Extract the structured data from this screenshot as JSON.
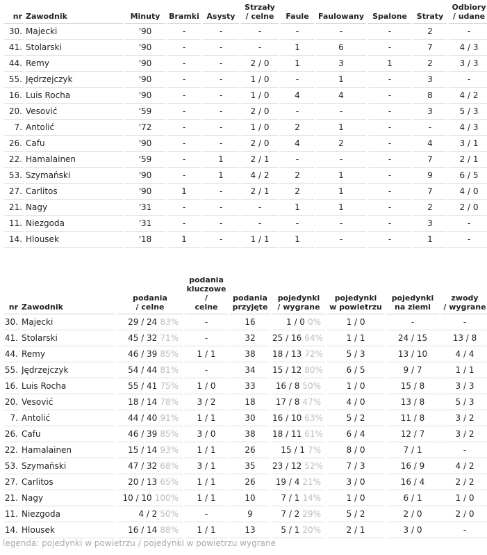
{
  "table1": {
    "header": [
      "nr",
      "Zawodnik",
      "Minuty",
      "Bramki",
      "Asysty",
      "Strzały\n/ celne",
      "Faule",
      "Faulowany",
      "Spalone",
      "Straty",
      "Odbiory\n/ udane"
    ],
    "rows": [
      [
        "30.",
        "Majecki",
        "'90",
        "-",
        "-",
        "-",
        "-",
        "-",
        "-",
        "2",
        "-"
      ],
      [
        "41.",
        "Stolarski",
        "'90",
        "-",
        "-",
        "-",
        "1",
        "6",
        "-",
        "7",
        "4 / 3"
      ],
      [
        "44.",
        "Remy",
        "'90",
        "-",
        "-",
        "2 / 0",
        "1",
        "3",
        "1",
        "2",
        "3 / 3"
      ],
      [
        "55.",
        "Jędrzejczyk",
        "'90",
        "-",
        "-",
        "1 / 0",
        "-",
        "1",
        "-",
        "3",
        "-"
      ],
      [
        "16.",
        "Luis Rocha",
        "'90",
        "-",
        "-",
        "1 / 0",
        "4",
        "4",
        "-",
        "8",
        "4 / 2"
      ],
      [
        "20.",
        "Vesović",
        "'59",
        "-",
        "-",
        "2 / 0",
        "-",
        "-",
        "-",
        "3",
        "5 / 3"
      ],
      [
        "7.",
        "Antolić",
        "'72",
        "-",
        "-",
        "1 / 0",
        "2",
        "1",
        "-",
        "-",
        "4 / 3"
      ],
      [
        "26.",
        "Cafu",
        "'90",
        "-",
        "-",
        "2 / 0",
        "4",
        "2",
        "-",
        "4",
        "3 / 1"
      ],
      [
        "22.",
        "Hamalainen",
        "'59",
        "-",
        "1",
        "2 / 1",
        "-",
        "-",
        "-",
        "7",
        "2 / 1"
      ],
      [
        "53.",
        "Szymański",
        "'90",
        "-",
        "1",
        "4 / 2",
        "2",
        "1",
        "-",
        "9",
        "6 / 5"
      ],
      [
        "27.",
        "Carlitos",
        "'90",
        "1",
        "-",
        "2 / 1",
        "2",
        "1",
        "-",
        "7",
        "4 / 0"
      ],
      [
        "21.",
        "Nagy",
        "'31",
        "-",
        "-",
        "-",
        "1",
        "1",
        "-",
        "2",
        "2 / 0"
      ],
      [
        "11.",
        "Niezgoda",
        "'31",
        "-",
        "-",
        "-",
        "-",
        "-",
        "-",
        "3",
        "-"
      ],
      [
        "14.",
        "Hlousek",
        "'18",
        "1",
        "-",
        "1 / 1",
        "1",
        "-",
        "-",
        "1",
        "-"
      ]
    ]
  },
  "table2": {
    "header": [
      "nr",
      "Zawodnik",
      "podania\n/ celne",
      "podania\nkluczowe /\ncelne",
      "podania\nprzyjęte",
      "pojedynki\n/ wygrane",
      "pojedynki\nw powietrzu",
      "pojedynki\nna ziemi",
      "zwody\n/ wygrane"
    ],
    "rows": [
      [
        "30.",
        "Majecki",
        "29 / 24",
        "83%",
        "-",
        "16",
        "1 / 0",
        "0%",
        "1 / 0",
        "-",
        "-"
      ],
      [
        "41.",
        "Stolarski",
        "45 / 32",
        "71%",
        "-",
        "32",
        "25 / 16",
        "64%",
        "1 / 1",
        "24 / 15",
        "13 / 8"
      ],
      [
        "44.",
        "Remy",
        "46 / 39",
        "85%",
        "1 / 1",
        "38",
        "18 / 13",
        "72%",
        "5 / 3",
        "13 / 10",
        "4 / 4"
      ],
      [
        "55.",
        "Jędrzejczyk",
        "54 / 44",
        "81%",
        "-",
        "34",
        "15 / 12",
        "80%",
        "6 / 5",
        "9 / 7",
        "1 / 1"
      ],
      [
        "16.",
        "Luis Rocha",
        "55 / 41",
        "75%",
        "1 / 0",
        "33",
        "16 / 8",
        "50%",
        "1 / 0",
        "15 / 8",
        "3 / 3"
      ],
      [
        "20.",
        "Vesović",
        "18 / 14",
        "78%",
        "3 / 2",
        "18",
        "17 / 8",
        "47%",
        "4 / 0",
        "13 / 8",
        "5 / 3"
      ],
      [
        "7.",
        "Antolić",
        "44 / 40",
        "91%",
        "1 / 1",
        "30",
        "16 / 10",
        "63%",
        "5 / 2",
        "11 / 8",
        "3 / 2"
      ],
      [
        "26.",
        "Cafu",
        "46 / 39",
        "85%",
        "3 / 0",
        "38",
        "18 / 11",
        "61%",
        "6 / 4",
        "12 / 7",
        "3 / 2"
      ],
      [
        "22.",
        "Hamalainen",
        "15 / 14",
        "93%",
        "1 / 1",
        "26",
        "15 / 1",
        "7%",
        "8 / 0",
        "7 / 1",
        "-"
      ],
      [
        "53.",
        "Szymański",
        "47 / 32",
        "68%",
        "3 / 1",
        "35",
        "23 / 12",
        "52%",
        "7 / 3",
        "16 / 9",
        "4 / 2"
      ],
      [
        "27.",
        "Carlitos",
        "20 / 13",
        "65%",
        "1 / 1",
        "26",
        "19 / 4",
        "21%",
        "3 / 0",
        "16 / 4",
        "2 / 2"
      ],
      [
        "21.",
        "Nagy",
        "10 / 10",
        "100%",
        "1 / 1",
        "10",
        "7 / 1",
        "14%",
        "1 / 0",
        "6 / 1",
        "1 / 0"
      ],
      [
        "11.",
        "Niezgoda",
        "4 / 2",
        "50%",
        "-",
        "9",
        "7 / 2",
        "29%",
        "5 / 2",
        "2 / 0",
        "2 / 0"
      ],
      [
        "14.",
        "Hlousek",
        "16 / 14",
        "88%",
        "1 / 1",
        "13",
        "5 / 1",
        "20%",
        "2 / 1",
        "3 / 0",
        "-"
      ]
    ]
  },
  "legend": "legenda: pojedynki w powietrzu / pojedynki w powietrzu wygrane"
}
